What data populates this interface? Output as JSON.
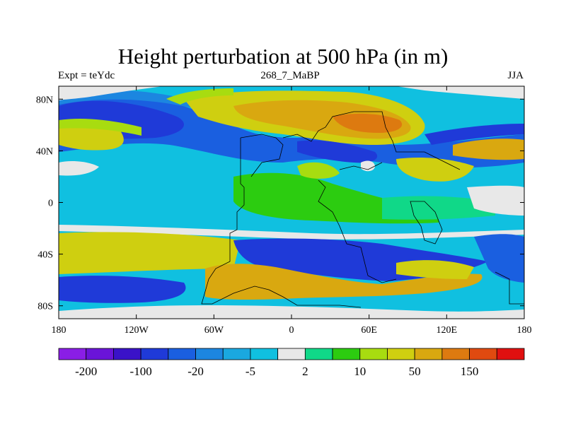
{
  "chart_data": {
    "type": "heatmap",
    "title": "Height perturbation at 500 hPa (in m)",
    "subtitle_left": "Expt = teYdc",
    "subtitle_center": "268_7_MaBP",
    "subtitle_right": "JJA",
    "x_ticks": [
      "180",
      "120W",
      "60W",
      "0",
      "60E",
      "120E",
      "180"
    ],
    "x_range": [
      -180,
      180
    ],
    "y_ticks": [
      "80N",
      "40N",
      "0",
      "40S",
      "80S"
    ],
    "y_tick_values": [
      80,
      40,
      0,
      -40,
      -80
    ],
    "y_range": [
      -90,
      90
    ],
    "colorbar": {
      "colors": [
        "#8a1ee6",
        "#6a14d8",
        "#3a12c8",
        "#1f3ad8",
        "#1a5fe0",
        "#1c86e0",
        "#1aa8e0",
        "#10c0e0",
        "#e8e8e8",
        "#10d888",
        "#2ccc10",
        "#a8dc10",
        "#cfcf10",
        "#d9a810",
        "#dd7a10",
        "#e04a10",
        "#e01010"
      ],
      "tick_labels": [
        "-200",
        "-100",
        "-20",
        "-5",
        "2",
        "10",
        "50",
        "150"
      ],
      "tick_boundary_index": [
        1,
        3,
        5,
        7,
        9,
        11,
        13,
        15
      ]
    }
  }
}
